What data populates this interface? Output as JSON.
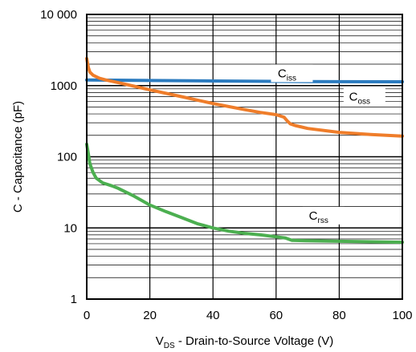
{
  "chart_data": {
    "type": "line",
    "xlabel_main": "V",
    "xlabel_sub": "DS",
    "xlabel_rest": " - Drain-to-Source Voltage (V)",
    "ylabel": "C - Capacitance (pF)",
    "xlim": [
      0,
      100
    ],
    "ylim": [
      1,
      10000
    ],
    "yscale": "log",
    "grid": true,
    "x_ticks": [
      0,
      20,
      40,
      60,
      80,
      100
    ],
    "x_tick_labels": [
      "0",
      "20",
      "40",
      "60",
      "80",
      "100"
    ],
    "y_ticks": [
      1,
      10,
      100,
      1000,
      10000
    ],
    "y_tick_labels": [
      "1",
      "10",
      "100",
      "1000",
      "10 000"
    ],
    "series": [
      {
        "name_main": "C",
        "name_sub": "iss",
        "color": "#2b7bbf",
        "points": [
          [
            0,
            1200
          ],
          [
            20,
            1180
          ],
          [
            40,
            1160
          ],
          [
            60,
            1145
          ],
          [
            80,
            1135
          ],
          [
            100,
            1130
          ]
        ]
      },
      {
        "name_main": "C",
        "name_sub": "oss",
        "color": "#ef7d2a",
        "points": [
          [
            0,
            2400
          ],
          [
            0.5,
            1800
          ],
          [
            1,
            1550
          ],
          [
            2,
            1400
          ],
          [
            4,
            1270
          ],
          [
            6,
            1200
          ],
          [
            10,
            1100
          ],
          [
            15,
            980
          ],
          [
            20,
            870
          ],
          [
            30,
            700
          ],
          [
            40,
            560
          ],
          [
            50,
            460
          ],
          [
            55,
            420
          ],
          [
            60,
            390
          ],
          [
            62.5,
            360
          ],
          [
            63.5,
            320
          ],
          [
            64.5,
            290
          ],
          [
            66,
            275
          ],
          [
            70,
            250
          ],
          [
            80,
            220
          ],
          [
            90,
            205
          ],
          [
            100,
            195
          ]
        ]
      },
      {
        "name_main": "C",
        "name_sub": "rss",
        "color": "#4caf50",
        "points": [
          [
            0,
            150
          ],
          [
            0.5,
            110
          ],
          [
            1,
            80
          ],
          [
            2,
            60
          ],
          [
            3,
            50
          ],
          [
            5,
            43
          ],
          [
            8,
            39
          ],
          [
            10,
            36
          ],
          [
            15,
            28
          ],
          [
            20,
            21
          ],
          [
            25,
            17
          ],
          [
            30,
            14
          ],
          [
            35,
            11.5
          ],
          [
            40,
            10
          ],
          [
            45,
            9
          ],
          [
            50,
            8.4
          ],
          [
            55,
            8
          ],
          [
            60,
            7.5
          ],
          [
            63,
            7.2
          ],
          [
            65,
            6.7
          ],
          [
            70,
            6.6
          ],
          [
            80,
            6.5
          ],
          [
            90,
            6.4
          ],
          [
            100,
            6.3
          ]
        ]
      }
    ],
    "legend_positions": [
      {
        "series": 0,
        "x": 65,
        "y": 1450
      },
      {
        "series": 1,
        "x": 88,
        "y": 680
      },
      {
        "series": 2,
        "x": 75,
        "y": 14.5
      }
    ]
  }
}
